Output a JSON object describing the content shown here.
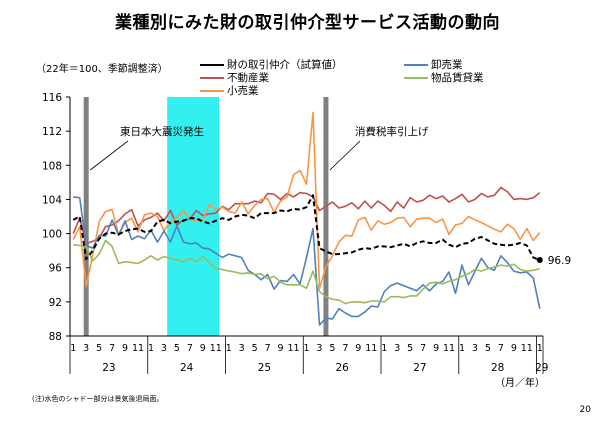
{
  "title": "業種別にみた財の取引仲介型サービス活動の動向",
  "subtitle": "（22年＝100、季節調整済）",
  "legend": {
    "series1": "財の取引仲介（試算値）",
    "series2": "不動産業",
    "series3": "小売業",
    "series4": "卸売業",
    "series5": "物品賃貸業"
  },
  "colors": {
    "series1": "#000000",
    "series2": "#c0504d",
    "series3": "#f79646",
    "series4": "#4f81bd",
    "series5": "#9bbb59",
    "shade_gray": "#808080",
    "shade_cyan": "#33f0f0"
  },
  "annotations": {
    "earthquake": "東日本大震災発生",
    "tax": "消費税率引上げ",
    "last_value": "96.9"
  },
  "axis": {
    "unit": "（月／年）",
    "year_labels": [
      "23",
      "24",
      "25",
      "26",
      "27",
      "28",
      "29"
    ]
  },
  "footnote": "(注)水色のシャドー部分は景気後退局面。",
  "page_number": "20",
  "chart_data": {
    "type": "line",
    "ylim": [
      88,
      116
    ],
    "yticks": [
      88,
      92,
      96,
      100,
      104,
      108,
      112,
      116
    ],
    "x_start": "2011-01",
    "x_end": "2017-01",
    "month_tick_labels": [
      "1",
      "3",
      "5",
      "7",
      "9",
      "11"
    ],
    "shaded_regions": [
      {
        "name": "gray",
        "from": "2011-03",
        "to": "2011-03"
      },
      {
        "name": "cyan",
        "from": "2012-04",
        "to": "2012-11"
      },
      {
        "name": "gray",
        "from": "2014-04",
        "to": "2014-04"
      }
    ],
    "series": [
      {
        "name": "財の取引仲介（試算値）",
        "key": "series1",
        "dashed": true,
        "values": [
          101.6,
          102.0,
          97.0,
          98.0,
          99.4,
          100.0,
          100.1,
          99.9,
          100.3,
          100.5,
          100.6,
          100.2,
          100.3,
          101.4,
          101.6,
          101.2,
          101.4,
          101.5,
          101.8,
          101.8,
          101.4,
          101.2,
          101.5,
          101.8,
          101.6,
          102.0,
          102.2,
          102.1,
          101.8,
          102.4,
          102.4,
          102.4,
          102.7,
          102.6,
          102.9,
          102.8,
          103.1,
          104.5,
          98.3,
          97.9,
          97.6,
          97.6,
          97.7,
          97.8,
          98.1,
          98.3,
          98.2,
          98.5,
          98.5,
          98.4,
          98.6,
          98.8,
          98.5,
          98.9,
          99.1,
          98.9,
          98.9,
          99.3,
          98.7,
          98.4,
          98.8,
          98.9,
          99.4,
          99.6,
          99.2,
          98.8,
          98.7,
          98.6,
          98.7,
          98.9,
          98.6,
          97.2,
          96.9
        ]
      },
      {
        "name": "不動産業",
        "key": "series2",
        "dashed": false,
        "values": [
          100.0,
          101.8,
          98.8,
          99.1,
          99.5,
          100.8,
          101.0,
          101.5,
          102.3,
          102.8,
          100.9,
          101.6,
          101.9,
          102.4,
          101.5,
          102.7,
          101.0,
          101.6,
          101.7,
          102.7,
          102.1,
          102.3,
          102.4,
          103.2,
          102.8,
          103.5,
          103.5,
          103.5,
          103.8,
          103.6,
          104.7,
          104.6,
          104.0,
          104.7,
          104.3,
          104.8,
          104.7,
          104.3,
          102.7,
          103.2,
          103.7,
          103.0,
          103.2,
          103.6,
          102.9,
          103.8,
          103.0,
          103.8,
          103.3,
          102.6,
          103.7,
          103.0,
          104.2,
          103.7,
          103.9,
          104.5,
          104.1,
          104.4,
          103.7,
          104.1,
          104.6,
          103.7,
          104.0,
          104.7,
          104.3,
          104.5,
          105.4,
          104.9,
          104.0,
          104.1,
          104.0,
          104.2,
          104.8
        ]
      },
      {
        "name": "小売業",
        "key": "series3",
        "dashed": false,
        "values": [
          99.3,
          100.8,
          93.8,
          97.5,
          101.4,
          102.6,
          102.8,
          99.9,
          101.3,
          101.8,
          100.2,
          102.2,
          102.4,
          102.0,
          100.3,
          101.4,
          101.9,
          102.7,
          101.7,
          101.5,
          101.6,
          103.4,
          102.8,
          103.1,
          102.6,
          102.4,
          103.7,
          102.3,
          103.3,
          104.0,
          104.1,
          102.5,
          103.8,
          104.3,
          106.9,
          107.4,
          105.8,
          114.2,
          93.6,
          96.1,
          97.4,
          99.0,
          99.8,
          99.7,
          101.6,
          101.9,
          100.4,
          101.5,
          101.1,
          101.3,
          101.8,
          101.9,
          100.8,
          101.7,
          101.8,
          101.8,
          101.3,
          101.7,
          99.9,
          101.0,
          101.2,
          102.0,
          101.6,
          101.3,
          100.9,
          100.5,
          100.2,
          101.1,
          100.6,
          99.3,
          100.6,
          99.2,
          100.1
        ]
      },
      {
        "name": "卸売業",
        "key": "series4",
        "dashed": false,
        "values": [
          104.3,
          104.2,
          98.6,
          98.3,
          99.8,
          99.7,
          101.6,
          99.8,
          101.5,
          99.3,
          99.7,
          99.4,
          100.4,
          99.0,
          100.3,
          99.0,
          100.9,
          99.0,
          98.8,
          98.9,
          98.3,
          98.2,
          97.7,
          97.2,
          97.6,
          97.4,
          97.2,
          95.7,
          95.2,
          94.6,
          95.2,
          93.5,
          94.5,
          94.4,
          95.2,
          94.1,
          97.2,
          100.6,
          89.3,
          90.1,
          90.0,
          91.2,
          90.7,
          90.3,
          90.3,
          90.8,
          91.5,
          91.4,
          93.2,
          93.9,
          94.2,
          93.9,
          93.6,
          93.3,
          94.0,
          93.3,
          94.1,
          94.4,
          95.5,
          93.0,
          96.3,
          94.0,
          95.6,
          97.1,
          96.0,
          95.7,
          97.4,
          96.6,
          95.6,
          95.4,
          95.5,
          94.8,
          91.2
        ]
      },
      {
        "name": "物品賃貸業",
        "key": "series5",
        "dashed": false,
        "values": [
          98.7,
          98.6,
          98.5,
          96.8,
          97.6,
          99.2,
          98.5,
          96.5,
          96.7,
          96.6,
          96.5,
          96.9,
          97.4,
          96.9,
          97.3,
          97.1,
          96.9,
          96.7,
          97.1,
          96.7,
          97.3,
          96.6,
          95.9,
          95.8,
          95.6,
          95.5,
          95.3,
          95.4,
          95.2,
          95.3,
          94.7,
          95.0,
          94.3,
          94.0,
          94.0,
          94.0,
          93.6,
          95.6,
          93.2,
          92.6,
          92.3,
          92.2,
          91.8,
          92.0,
          92.0,
          91.9,
          92.1,
          92.1,
          92.0,
          92.6,
          92.6,
          92.5,
          92.7,
          92.7,
          93.5,
          94.2,
          94.3,
          94.1,
          94.4,
          94.6,
          95.0,
          95.3,
          95.8,
          95.6,
          95.9,
          96.1,
          96.3,
          96.2,
          96.4,
          95.8,
          95.6,
          95.7,
          95.9
        ]
      }
    ]
  }
}
